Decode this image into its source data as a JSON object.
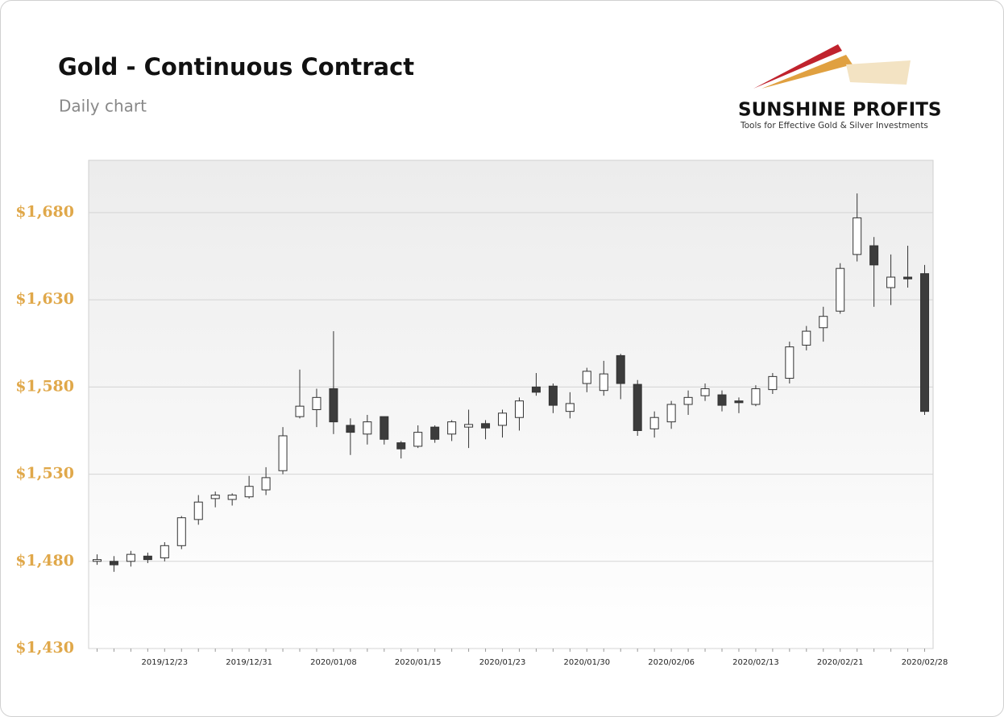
{
  "chart_data": {
    "type": "candlestick",
    "title": "Gold - Continuous Contract",
    "subtitle": "Daily chart",
    "brand": "SUNSHINE PROFITS",
    "tagline": "Tools for Effective Gold & Silver Investments",
    "categories": [
      null,
      null,
      null,
      null,
      "2019/12/23",
      null,
      null,
      null,
      null,
      "2019/12/31",
      null,
      null,
      null,
      null,
      "2020/01/08",
      null,
      null,
      null,
      null,
      "2020/01/15",
      null,
      null,
      null,
      null,
      "2020/01/23",
      null,
      null,
      null,
      null,
      "2020/01/30",
      null,
      null,
      null,
      null,
      "2020/02/06",
      null,
      null,
      null,
      null,
      "2020/02/13",
      null,
      null,
      null,
      null,
      "2020/02/21",
      null,
      null,
      null,
      null,
      "2020/02/28"
    ],
    "open": [
      1480,
      1480,
      1480,
      1483,
      1482,
      1489,
      1504,
      1516,
      1515.5,
      1517,
      1521,
      1532,
      1563,
      1567,
      1579,
      1558,
      1553,
      1563,
      1548,
      1546,
      1557,
      1553,
      1557,
      1559,
      1558,
      1562.5,
      1580,
      1580.5,
      1566,
      1582,
      1578,
      1598,
      1581.5,
      1556,
      1560,
      1570,
      1575,
      1575.5,
      1572,
      1570,
      1578.5,
      1585,
      1604,
      1614,
      1623.5,
      1656,
      1661,
      1637,
      1643,
      1645
    ],
    "high": [
      1484,
      1483,
      1486,
      1485,
      1491,
      1506,
      1518,
      1520,
      1519,
      1529,
      1534,
      1557,
      1590,
      1579,
      1612,
      1562,
      1564,
      1563,
      1549,
      1558,
      1558,
      1561,
      1567,
      1561,
      1567,
      1574,
      1588,
      1582,
      1577,
      1591,
      1595,
      1599,
      1584,
      1566,
      1572,
      1578,
      1582,
      1578,
      1574,
      1581,
      1588,
      1606,
      1615,
      1626,
      1651,
      1691,
      1666,
      1656,
      1661,
      1650
    ],
    "low": [
      1478,
      1474,
      1477,
      1479,
      1480,
      1487,
      1501,
      1511,
      1512,
      1516,
      1518,
      1530,
      1562,
      1557,
      1553,
      1541,
      1547,
      1547,
      1539,
      1545,
      1548,
      1549,
      1545,
      1550,
      1551,
      1555,
      1575,
      1565,
      1562,
      1577,
      1575,
      1573,
      1552,
      1551,
      1556,
      1564,
      1572,
      1566,
      1565,
      1569,
      1576,
      1582,
      1601,
      1606,
      1622,
      1652,
      1626,
      1627,
      1637,
      1564
    ],
    "close": [
      1481,
      1478,
      1484,
      1481,
      1489,
      1505,
      1514,
      1518,
      1518,
      1523,
      1528,
      1552,
      1569,
      1574,
      1560,
      1554,
      1560,
      1550,
      1544.5,
      1554,
      1550,
      1560,
      1558.5,
      1556.5,
      1565,
      1572,
      1577,
      1569.5,
      1570.5,
      1589,
      1587.5,
      1582,
      1555,
      1562.5,
      1570,
      1574,
      1579,
      1569.5,
      1571,
      1579,
      1586,
      1603,
      1612,
      1620.5,
      1648,
      1677,
      1650,
      1643,
      1642,
      1566
    ],
    "up_color": "#ffffff",
    "down_color": "#3c3c3c",
    "ylim": [
      1430,
      1710
    ],
    "yticks": [
      {
        "value": 1430,
        "label": "$1,430"
      },
      {
        "value": 1480,
        "label": "$1,480"
      },
      {
        "value": 1530,
        "label": "$1,530"
      },
      {
        "value": 1580,
        "label": "$1,580"
      },
      {
        "value": 1630,
        "label": "$1,630"
      },
      {
        "value": 1680,
        "label": "$1,680"
      }
    ],
    "grid": true
  }
}
